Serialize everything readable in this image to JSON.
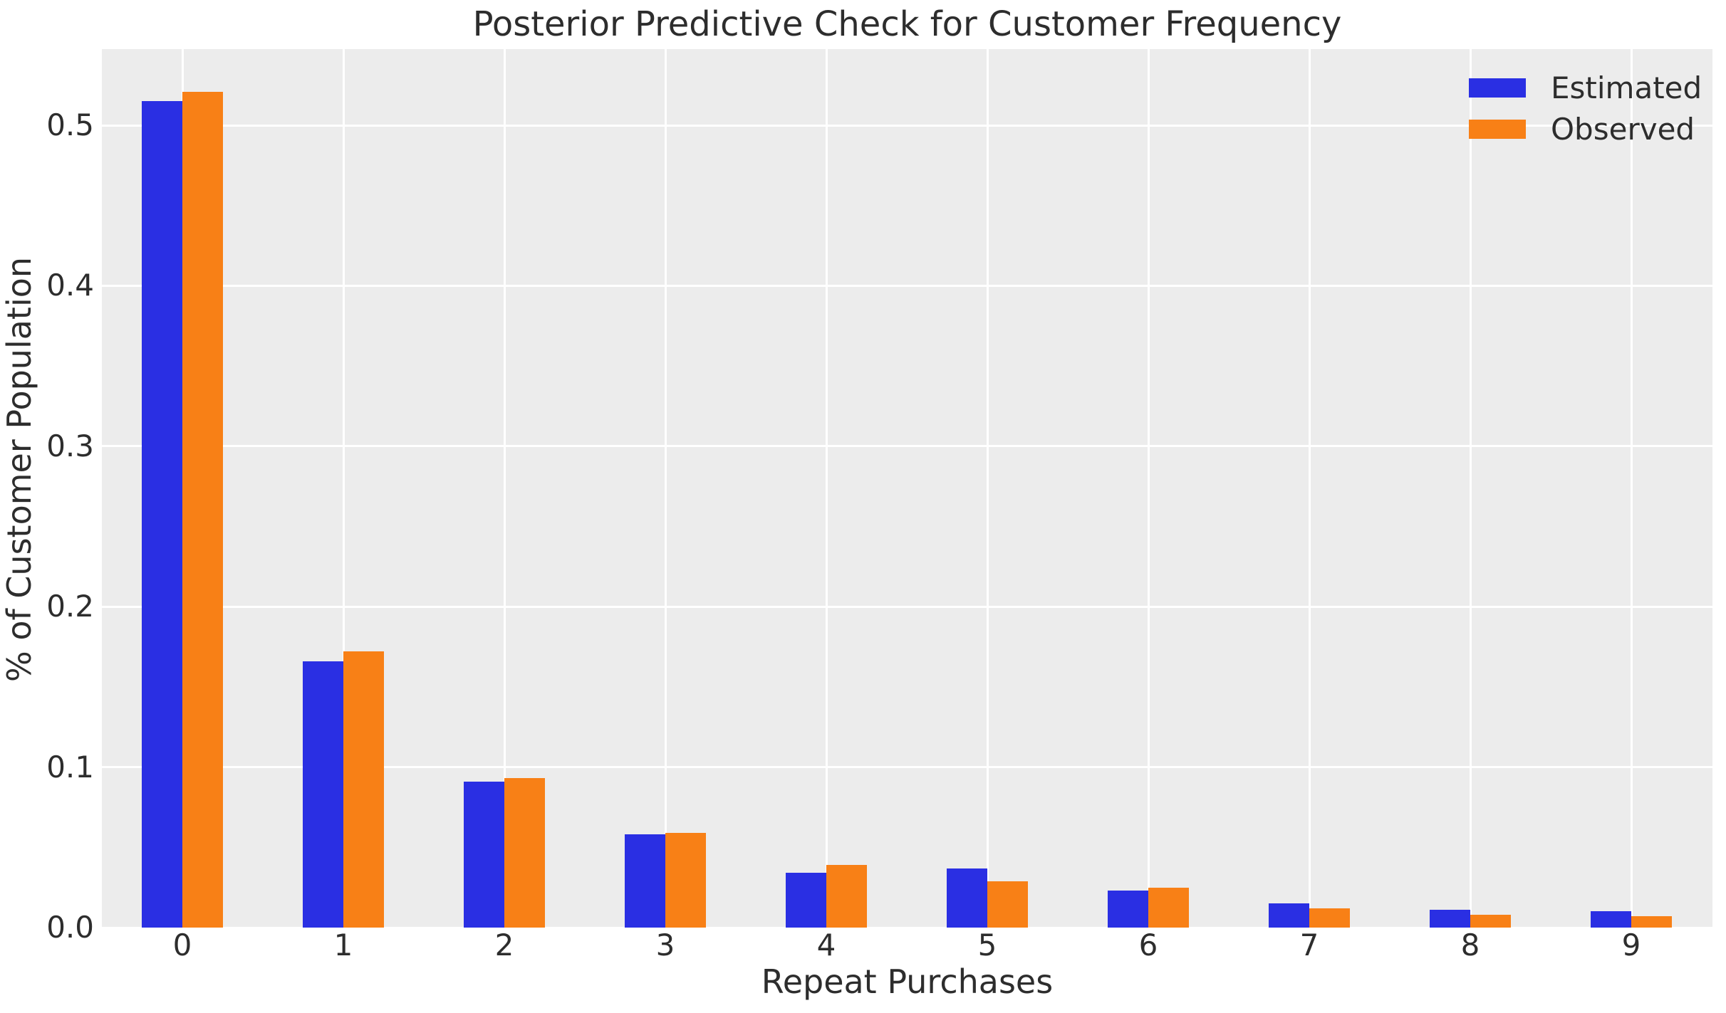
{
  "chart_data": {
    "type": "bar",
    "title": "Posterior Predictive Check for Customer Frequency",
    "xlabel": "Repeat Purchases",
    "ylabel": "% of Customer Population",
    "categories": [
      "0",
      "1",
      "2",
      "3",
      "4",
      "5",
      "6",
      "7",
      "8",
      "9"
    ],
    "series": [
      {
        "name": "Estimated",
        "color": "#2a2fe3",
        "values": [
          0.515,
          0.166,
          0.091,
          0.058,
          0.034,
          0.037,
          0.023,
          0.015,
          0.011,
          0.01
        ]
      },
      {
        "name": "Observed",
        "color": "#f88016",
        "values": [
          0.521,
          0.172,
          0.093,
          0.059,
          0.039,
          0.029,
          0.025,
          0.012,
          0.008,
          0.007
        ]
      }
    ],
    "ytick_labels": [
      "0.0",
      "0.1",
      "0.2",
      "0.3",
      "0.4",
      "0.5"
    ],
    "yticks": [
      0.0,
      0.1,
      0.2,
      0.3,
      0.4,
      0.5
    ],
    "ylim": [
      0,
      0.5475
    ],
    "grid": true,
    "legend_position": "upper right",
    "plot_bg_color": "#ececec",
    "grid_color": "#ffffff",
    "text_color": "#2d2d2d"
  }
}
